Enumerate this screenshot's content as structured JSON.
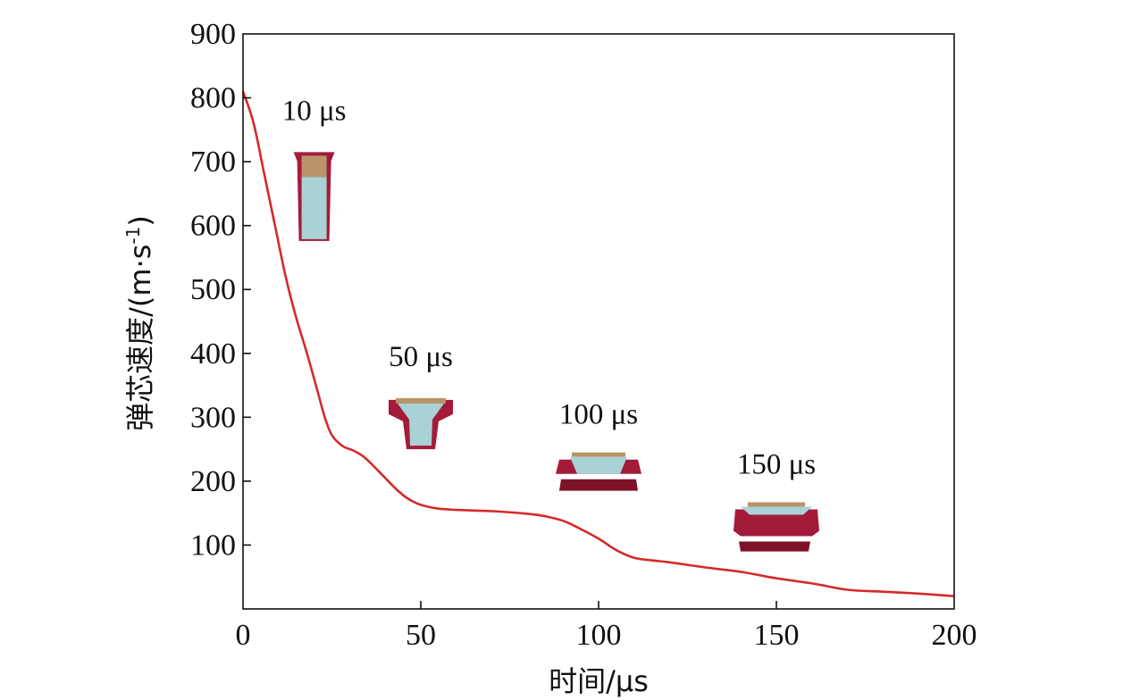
{
  "chart_data": {
    "type": "line",
    "xlabel": "时间/μs",
    "ylabel_main": "弹芯速度/(m·s",
    "ylabel_exp": "-1",
    "ylabel_close": ")",
    "xlim": [
      0,
      200
    ],
    "ylim": [
      0,
      900
    ],
    "x_ticks": [
      0,
      50,
      100,
      150,
      200
    ],
    "y_ticks": [
      100,
      200,
      300,
      400,
      500,
      600,
      700,
      800,
      900
    ],
    "grid": false,
    "line_color": "#d42a2a",
    "series": [
      {
        "x": [
          0,
          3,
          6,
          9,
          12,
          15,
          18,
          21,
          23,
          25,
          28,
          31,
          34,
          37,
          40,
          43,
          46,
          49,
          52,
          55,
          60,
          70,
          80,
          85,
          90,
          95,
          100,
          105,
          110,
          115,
          120,
          130,
          140,
          150,
          160,
          170,
          180,
          190,
          200
        ],
        "y": [
          810,
          760,
          680,
          600,
          520,
          455,
          400,
          340,
          300,
          272,
          255,
          248,
          238,
          222,
          205,
          188,
          174,
          165,
          160,
          157,
          155,
          153,
          149,
          145,
          138,
          125,
          110,
          92,
          80,
          76,
          73,
          65,
          58,
          48,
          40,
          30,
          27,
          24,
          20
        ]
      }
    ],
    "annotations": [
      {
        "x": 20,
        "y": 765,
        "text": "10 μs"
      },
      {
        "x": 50,
        "y": 380,
        "text": "50 μs"
      },
      {
        "x": 100,
        "y": 290,
        "text": "100 μs"
      },
      {
        "x": 150,
        "y": 212,
        "text": "150 μs"
      }
    ],
    "insets": [
      {
        "name": "core-10us",
        "x": 20,
        "y_top": 715,
        "y_bottom": 576
      },
      {
        "name": "core-50us",
        "x": 50,
        "y_top": 330,
        "y_bottom": 250
      },
      {
        "name": "core-100us",
        "x": 100,
        "y_top": 245,
        "y_bottom": 185
      },
      {
        "name": "core-150us",
        "x": 150,
        "y_top": 167,
        "y_bottom": 90
      }
    ],
    "colors": {
      "jacket": "#a41b3a",
      "jacket_dark": "#7e1229",
      "core_fill": "#a8d2d6",
      "tip_fill": "#b9946a"
    }
  }
}
